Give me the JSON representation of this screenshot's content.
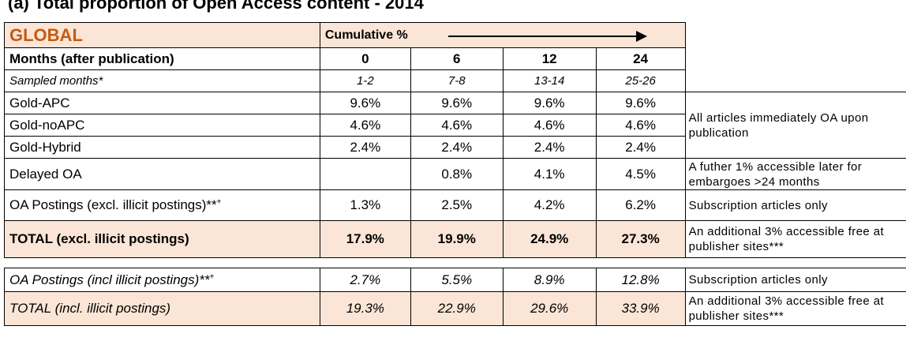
{
  "title": "(a) Total proportion of Open Access content - 2014",
  "header": {
    "region": "GLOBAL",
    "cumulative": "Cumulative %",
    "months_label": "Months (after publication)",
    "months": [
      "0",
      "6",
      "12",
      "24"
    ],
    "sampled_label": "Sampled months*",
    "sampled": [
      "1-2",
      "7-8",
      "13-14",
      "25-26"
    ]
  },
  "rows": [
    {
      "label": "Gold-APC",
      "values": [
        "9.6%",
        "9.6%",
        "9.6%",
        "9.6%"
      ]
    },
    {
      "label": "Gold-noAPC",
      "values": [
        "4.6%",
        "4.6%",
        "4.6%",
        "4.6%"
      ]
    },
    {
      "label": "Gold-Hybrid",
      "values": [
        "2.4%",
        "2.4%",
        "2.4%",
        "2.4%"
      ]
    },
    {
      "label": "Delayed OA",
      "values": [
        null,
        "0.8%",
        "4.1%",
        "4.5%"
      ]
    },
    {
      "label": "OA Postings (excl. illicit postings)**",
      "sup": "+",
      "values": [
        "1.3%",
        "2.5%",
        "4.2%",
        "6.2%"
      ]
    },
    {
      "label": "TOTAL (excl. illicit postings)",
      "values": [
        "17.9%",
        "19.9%",
        "24.9%",
        "27.3%"
      ]
    },
    {
      "label": "OA Postings (incl illicit postings)**",
      "sup": "+",
      "values": [
        "2.7%",
        "5.5%",
        "8.9%",
        "12.8%"
      ]
    },
    {
      "label": "TOTAL (incl. illicit postings)",
      "values": [
        "19.3%",
        "22.9%",
        "29.6%",
        "33.9%"
      ]
    }
  ],
  "notes": {
    "gold": "All articles immediately OA upon publication",
    "delayed": "A futher 1% accessible later for embargoes >24 months",
    "postings_excl": "Subscription articles only",
    "total_excl": "An additional 3% accessible free at publisher sites***",
    "postings_incl": "Subscription articles only",
    "total_incl": "An additional 3% accessible free at publisher sites***"
  }
}
